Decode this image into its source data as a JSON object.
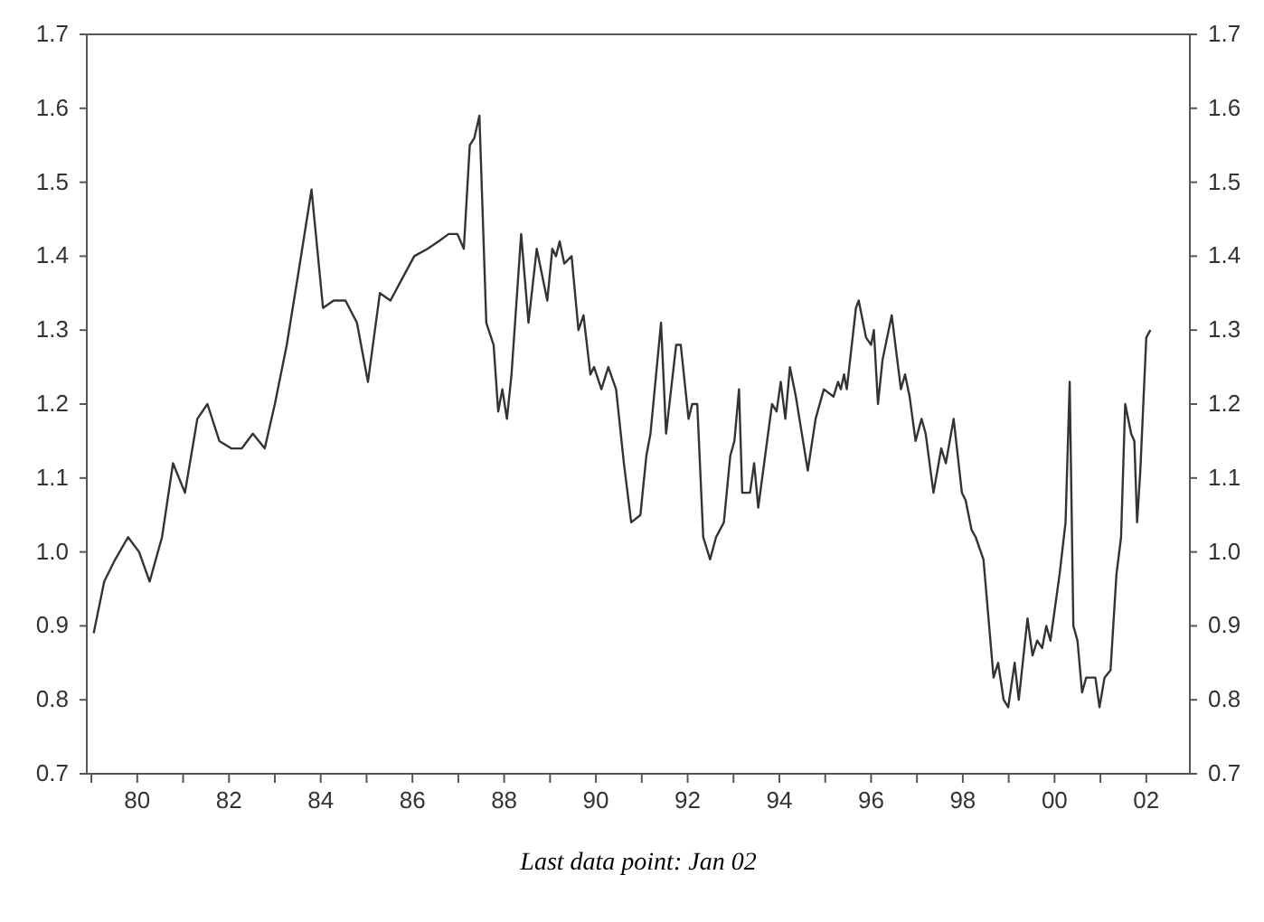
{
  "chart_data": {
    "type": "line",
    "color": "#333333",
    "x": [
      1979.05,
      1979.28,
      1979.52,
      1979.8,
      1980.04,
      1980.27,
      1980.54,
      1980.78,
      1981.04,
      1981.31,
      1981.53,
      1981.79,
      1982.05,
      1982.28,
      1982.52,
      1982.78,
      1983.0,
      1983.26,
      1983.52,
      1983.8,
      1984.05,
      1984.28,
      1984.54,
      1984.79,
      1985.03,
      1985.29,
      1985.52,
      1985.78,
      1986.04,
      1986.33,
      1986.57,
      1986.79,
      1986.98,
      1987.12,
      1987.25,
      1987.35,
      1987.46,
      1987.61,
      1987.77,
      1987.87,
      1987.96,
      1988.06,
      1988.16,
      1988.37,
      1988.53,
      1988.71,
      1988.94,
      1989.05,
      1989.13,
      1989.21,
      1989.31,
      1989.47,
      1989.62,
      1989.73,
      1989.88,
      1989.96,
      1990.12,
      1990.27,
      1990.44,
      1990.61,
      1990.77,
      1990.97,
      1991.1,
      1991.19,
      1991.42,
      1991.53,
      1991.75,
      1991.85,
      1992.02,
      1992.1,
      1992.21,
      1992.34,
      1992.49,
      1992.62,
      1992.79,
      1992.93,
      1993.02,
      1993.12,
      1993.19,
      1993.36,
      1993.45,
      1993.54,
      1993.84,
      1993.94,
      1994.03,
      1994.13,
      1994.23,
      1994.36,
      1994.62,
      1994.79,
      1994.97,
      1995.18,
      1995.28,
      1995.34,
      1995.41,
      1995.47,
      1995.67,
      1995.73,
      1995.89,
      1996.0,
      1996.06,
      1996.15,
      1996.25,
      1996.45,
      1996.65,
      1996.74,
      1996.84,
      1996.97,
      1997.1,
      1997.19,
      1997.36,
      1997.53,
      1997.63,
      1997.8,
      1997.98,
      1998.06,
      1998.19,
      1998.28,
      1998.45,
      1998.67,
      1998.77,
      1998.89,
      1998.99,
      1999.13,
      1999.22,
      1999.41,
      1999.52,
      1999.62,
      1999.73,
      1999.82,
      1999.91,
      2000.11,
      2000.24,
      2000.33,
      2000.41,
      2000.5,
      2000.6,
      2000.69,
      2000.89,
      2000.98,
      2001.09,
      2001.22,
      2001.35,
      2001.45,
      2001.54,
      2001.67,
      2001.74,
      2001.8,
      2001.87,
      2002.0,
      2002.09
    ],
    "values": [
      0.89,
      0.96,
      0.99,
      1.02,
      1.0,
      0.96,
      1.02,
      1.12,
      1.08,
      1.18,
      1.2,
      1.15,
      1.14,
      1.14,
      1.16,
      1.14,
      1.2,
      1.28,
      1.38,
      1.49,
      1.33,
      1.34,
      1.34,
      1.31,
      1.23,
      1.35,
      1.34,
      1.37,
      1.4,
      1.41,
      1.42,
      1.43,
      1.43,
      1.41,
      1.55,
      1.56,
      1.59,
      1.31,
      1.28,
      1.19,
      1.22,
      1.18,
      1.24,
      1.43,
      1.31,
      1.41,
      1.34,
      1.41,
      1.4,
      1.42,
      1.39,
      1.4,
      1.3,
      1.32,
      1.24,
      1.25,
      1.22,
      1.25,
      1.22,
      1.12,
      1.04,
      1.05,
      1.13,
      1.16,
      1.31,
      1.16,
      1.28,
      1.28,
      1.18,
      1.2,
      1.2,
      1.02,
      0.99,
      1.02,
      1.04,
      1.13,
      1.15,
      1.22,
      1.08,
      1.08,
      1.12,
      1.06,
      1.2,
      1.19,
      1.23,
      1.18,
      1.25,
      1.21,
      1.11,
      1.18,
      1.22,
      1.21,
      1.23,
      1.22,
      1.24,
      1.22,
      1.33,
      1.34,
      1.29,
      1.28,
      1.3,
      1.2,
      1.26,
      1.32,
      1.22,
      1.24,
      1.21,
      1.15,
      1.18,
      1.16,
      1.08,
      1.14,
      1.12,
      1.18,
      1.08,
      1.07,
      1.03,
      1.02,
      0.99,
      0.83,
      0.85,
      0.8,
      0.79,
      0.85,
      0.8,
      0.91,
      0.86,
      0.88,
      0.87,
      0.9,
      0.88,
      0.97,
      1.04,
      1.23,
      0.9,
      0.88,
      0.81,
      0.83,
      0.83,
      0.79,
      0.83,
      0.84,
      0.97,
      1.02,
      1.2,
      1.16,
      1.15,
      1.04,
      1.11,
      1.29,
      1.3
    ],
    "xlim": [
      1978.9,
      2002.95
    ],
    "xticks": [
      {
        "value": 1979,
        "label": null
      },
      {
        "value": 1980,
        "label": "80"
      },
      {
        "value": 1981,
        "label": null
      },
      {
        "value": 1982,
        "label": "82"
      },
      {
        "value": 1983,
        "label": null
      },
      {
        "value": 1984,
        "label": "84"
      },
      {
        "value": 1985,
        "label": null
      },
      {
        "value": 1986,
        "label": "86"
      },
      {
        "value": 1987,
        "label": null
      },
      {
        "value": 1988,
        "label": "88"
      },
      {
        "value": 1989,
        "label": null
      },
      {
        "value": 1990,
        "label": "90"
      },
      {
        "value": 1991,
        "label": null
      },
      {
        "value": 1992,
        "label": "92"
      },
      {
        "value": 1993,
        "label": null
      },
      {
        "value": 1994,
        "label": "94"
      },
      {
        "value": 1995,
        "label": null
      },
      {
        "value": 1996,
        "label": "96"
      },
      {
        "value": 1997,
        "label": null
      },
      {
        "value": 1998,
        "label": "98"
      },
      {
        "value": 1999,
        "label": null
      },
      {
        "value": 2000,
        "label": "00"
      },
      {
        "value": 2001,
        "label": null
      },
      {
        "value": 2002,
        "label": "02"
      }
    ],
    "ylim": [
      0.7,
      1.7
    ],
    "yticks": [
      {
        "value": 0.7,
        "label": "0.7"
      },
      {
        "value": 0.8,
        "label": "0.8"
      },
      {
        "value": 0.9,
        "label": "0.9"
      },
      {
        "value": 1.0,
        "label": "1.0"
      },
      {
        "value": 1.1,
        "label": "1.1"
      },
      {
        "value": 1.2,
        "label": "1.2"
      },
      {
        "value": 1.3,
        "label": "1.3"
      },
      {
        "value": 1.4,
        "label": "1.4"
      },
      {
        "value": 1.5,
        "label": "1.5"
      },
      {
        "value": 1.6,
        "label": "1.6"
      },
      {
        "value": 1.7,
        "label": "1.7"
      }
    ],
    "y2lim": [
      0.7,
      1.7
    ],
    "y2ticks": [
      {
        "value": 0.7,
        "label": "0.7"
      },
      {
        "value": 0.8,
        "label": "0.8"
      },
      {
        "value": 0.9,
        "label": "0.9"
      },
      {
        "value": 1.0,
        "label": "1.0"
      },
      {
        "value": 1.1,
        "label": "1.1"
      },
      {
        "value": 1.2,
        "label": "1.2"
      },
      {
        "value": 1.3,
        "label": "1.3"
      },
      {
        "value": 1.4,
        "label": "1.4"
      },
      {
        "value": 1.5,
        "label": "1.5"
      },
      {
        "value": 1.6,
        "label": "1.6"
      },
      {
        "value": 1.7,
        "label": "1.7"
      }
    ],
    "annotations": [
      "Last data point: Jan 02"
    ]
  }
}
